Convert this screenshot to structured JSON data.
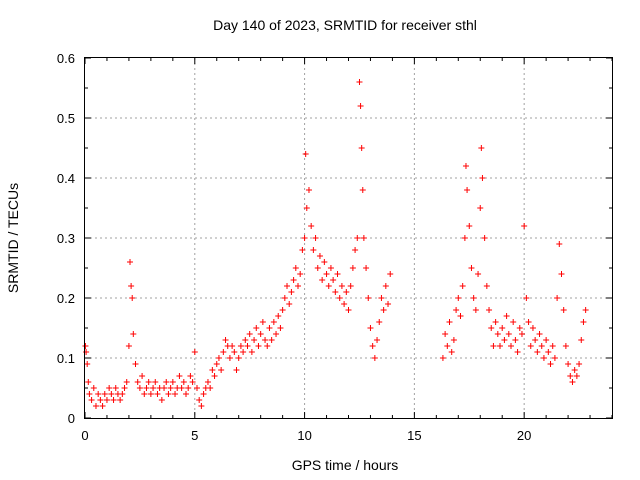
{
  "chart_data": {
    "type": "scatter",
    "title": "Day 140 of 2023, SRMTID for receiver sthl",
    "xlabel": "GPS time / hours",
    "ylabel": "SRMTID / TECUs",
    "xlim": [
      0,
      24
    ],
    "ylim": [
      0,
      0.6
    ],
    "x_ticks": [
      0,
      5,
      10,
      15,
      20
    ],
    "y_ticks": [
      0,
      0.1,
      0.2,
      0.3,
      0.4,
      0.5,
      0.6
    ],
    "x_tick_labels": [
      "0",
      "5",
      "10",
      "15",
      "20"
    ],
    "y_tick_labels": [
      "0",
      "0.1",
      "0.2",
      "0.3",
      "0.4",
      "0.5",
      "0.6"
    ],
    "grid": true,
    "marker": "+",
    "marker_color": "#ff0000",
    "series": [
      {
        "name": "SRMTID",
        "points": [
          [
            0.02,
            0.12
          ],
          [
            0.05,
            0.11
          ],
          [
            0.1,
            0.09
          ],
          [
            0.15,
            0.06
          ],
          [
            0.2,
            0.04
          ],
          [
            0.3,
            0.03
          ],
          [
            0.4,
            0.05
          ],
          [
            0.5,
            0.02
          ],
          [
            0.6,
            0.04
          ],
          [
            0.7,
            0.03
          ],
          [
            0.8,
            0.02
          ],
          [
            0.9,
            0.04
          ],
          [
            1.0,
            0.03
          ],
          [
            1.1,
            0.05
          ],
          [
            1.2,
            0.04
          ],
          [
            1.3,
            0.03
          ],
          [
            1.4,
            0.05
          ],
          [
            1.5,
            0.04
          ],
          [
            1.6,
            0.03
          ],
          [
            1.7,
            0.04
          ],
          [
            1.8,
            0.05
          ],
          [
            1.9,
            0.06
          ],
          [
            2.0,
            0.12
          ],
          [
            2.05,
            0.26
          ],
          [
            2.1,
            0.22
          ],
          [
            2.15,
            0.2
          ],
          [
            2.2,
            0.14
          ],
          [
            2.3,
            0.09
          ],
          [
            2.4,
            0.06
          ],
          [
            2.5,
            0.05
          ],
          [
            2.6,
            0.07
          ],
          [
            2.7,
            0.04
          ],
          [
            2.8,
            0.05
          ],
          [
            2.9,
            0.06
          ],
          [
            3.0,
            0.04
          ],
          [
            3.1,
            0.05
          ],
          [
            3.2,
            0.06
          ],
          [
            3.3,
            0.04
          ],
          [
            3.4,
            0.05
          ],
          [
            3.5,
            0.03
          ],
          [
            3.6,
            0.05
          ],
          [
            3.7,
            0.06
          ],
          [
            3.8,
            0.04
          ],
          [
            3.9,
            0.05
          ],
          [
            4.0,
            0.06
          ],
          [
            4.1,
            0.04
          ],
          [
            4.2,
            0.05
          ],
          [
            4.3,
            0.07
          ],
          [
            4.4,
            0.05
          ],
          [
            4.5,
            0.06
          ],
          [
            4.6,
            0.04
          ],
          [
            4.7,
            0.05
          ],
          [
            4.8,
            0.07
          ],
          [
            4.9,
            0.06
          ],
          [
            5.0,
            0.11
          ],
          [
            5.1,
            0.05
          ],
          [
            5.2,
            0.03
          ],
          [
            5.3,
            0.02
          ],
          [
            5.4,
            0.04
          ],
          [
            5.5,
            0.05
          ],
          [
            5.6,
            0.06
          ],
          [
            5.7,
            0.05
          ],
          [
            5.8,
            0.08
          ],
          [
            5.9,
            0.07
          ],
          [
            6.0,
            0.09
          ],
          [
            6.1,
            0.1
          ],
          [
            6.2,
            0.08
          ],
          [
            6.3,
            0.11
          ],
          [
            6.4,
            0.13
          ],
          [
            6.5,
            0.12
          ],
          [
            6.6,
            0.1
          ],
          [
            6.7,
            0.12
          ],
          [
            6.8,
            0.11
          ],
          [
            6.9,
            0.08
          ],
          [
            7.0,
            0.1
          ],
          [
            7.1,
            0.12
          ],
          [
            7.2,
            0.11
          ],
          [
            7.3,
            0.13
          ],
          [
            7.4,
            0.12
          ],
          [
            7.5,
            0.14
          ],
          [
            7.6,
            0.11
          ],
          [
            7.7,
            0.13
          ],
          [
            7.8,
            0.15
          ],
          [
            7.9,
            0.12
          ],
          [
            8.0,
            0.14
          ],
          [
            8.1,
            0.16
          ],
          [
            8.2,
            0.13
          ],
          [
            8.3,
            0.12
          ],
          [
            8.4,
            0.15
          ],
          [
            8.5,
            0.13
          ],
          [
            8.6,
            0.16
          ],
          [
            8.7,
            0.14
          ],
          [
            8.8,
            0.17
          ],
          [
            8.9,
            0.15
          ],
          [
            9.0,
            0.18
          ],
          [
            9.1,
            0.2
          ],
          [
            9.2,
            0.22
          ],
          [
            9.3,
            0.19
          ],
          [
            9.4,
            0.21
          ],
          [
            9.5,
            0.23
          ],
          [
            9.6,
            0.25
          ],
          [
            9.7,
            0.22
          ],
          [
            9.8,
            0.24
          ],
          [
            9.9,
            0.28
          ],
          [
            10.0,
            0.3
          ],
          [
            10.05,
            0.44
          ],
          [
            10.1,
            0.35
          ],
          [
            10.2,
            0.38
          ],
          [
            10.3,
            0.32
          ],
          [
            10.4,
            0.28
          ],
          [
            10.5,
            0.3
          ],
          [
            10.6,
            0.25
          ],
          [
            10.7,
            0.27
          ],
          [
            10.8,
            0.23
          ],
          [
            10.9,
            0.26
          ],
          [
            11.0,
            0.24
          ],
          [
            11.1,
            0.22
          ],
          [
            11.2,
            0.25
          ],
          [
            11.3,
            0.23
          ],
          [
            11.4,
            0.21
          ],
          [
            11.5,
            0.24
          ],
          [
            11.6,
            0.2
          ],
          [
            11.7,
            0.22
          ],
          [
            11.8,
            0.19
          ],
          [
            11.9,
            0.21
          ],
          [
            12.0,
            0.18
          ],
          [
            12.1,
            0.22
          ],
          [
            12.2,
            0.25
          ],
          [
            12.3,
            0.28
          ],
          [
            12.4,
            0.3
          ],
          [
            12.5,
            0.56
          ],
          [
            12.55,
            0.52
          ],
          [
            12.6,
            0.45
          ],
          [
            12.65,
            0.38
          ],
          [
            12.7,
            0.3
          ],
          [
            12.8,
            0.25
          ],
          [
            12.9,
            0.2
          ],
          [
            13.0,
            0.15
          ],
          [
            13.1,
            0.12
          ],
          [
            13.2,
            0.1
          ],
          [
            13.3,
            0.13
          ],
          [
            13.4,
            0.16
          ],
          [
            13.5,
            0.2
          ],
          [
            13.6,
            0.18
          ],
          [
            13.7,
            0.22
          ],
          [
            13.8,
            0.19
          ],
          [
            13.9,
            0.24
          ],
          [
            16.3,
            0.1
          ],
          [
            16.4,
            0.14
          ],
          [
            16.5,
            0.12
          ],
          [
            16.6,
            0.16
          ],
          [
            16.7,
            0.11
          ],
          [
            16.8,
            0.13
          ],
          [
            16.9,
            0.18
          ],
          [
            17.0,
            0.2
          ],
          [
            17.1,
            0.17
          ],
          [
            17.2,
            0.22
          ],
          [
            17.3,
            0.3
          ],
          [
            17.35,
            0.42
          ],
          [
            17.4,
            0.38
          ],
          [
            17.5,
            0.32
          ],
          [
            17.6,
            0.25
          ],
          [
            17.7,
            0.2
          ],
          [
            17.8,
            0.18
          ],
          [
            17.9,
            0.24
          ],
          [
            18.0,
            0.35
          ],
          [
            18.05,
            0.45
          ],
          [
            18.1,
            0.4
          ],
          [
            18.2,
            0.3
          ],
          [
            18.3,
            0.22
          ],
          [
            18.4,
            0.18
          ],
          [
            18.5,
            0.15
          ],
          [
            18.6,
            0.12
          ],
          [
            18.7,
            0.16
          ],
          [
            18.8,
            0.14
          ],
          [
            18.9,
            0.12
          ],
          [
            19.0,
            0.15
          ],
          [
            19.1,
            0.13
          ],
          [
            19.2,
            0.17
          ],
          [
            19.3,
            0.14
          ],
          [
            19.4,
            0.12
          ],
          [
            19.5,
            0.16
          ],
          [
            19.6,
            0.13
          ],
          [
            19.7,
            0.11
          ],
          [
            19.8,
            0.15
          ],
          [
            19.9,
            0.14
          ],
          [
            20.0,
            0.32
          ],
          [
            20.1,
            0.2
          ],
          [
            20.2,
            0.16
          ],
          [
            20.3,
            0.12
          ],
          [
            20.4,
            0.15
          ],
          [
            20.5,
            0.13
          ],
          [
            20.6,
            0.11
          ],
          [
            20.7,
            0.14
          ],
          [
            20.8,
            0.12
          ],
          [
            20.9,
            0.1
          ],
          [
            21.0,
            0.13
          ],
          [
            21.1,
            0.11
          ],
          [
            21.2,
            0.09
          ],
          [
            21.3,
            0.12
          ],
          [
            21.4,
            0.1
          ],
          [
            21.5,
            0.2
          ],
          [
            21.6,
            0.29
          ],
          [
            21.7,
            0.24
          ],
          [
            21.8,
            0.18
          ],
          [
            21.9,
            0.12
          ],
          [
            22.0,
            0.09
          ],
          [
            22.1,
            0.07
          ],
          [
            22.2,
            0.06
          ],
          [
            22.3,
            0.08
          ],
          [
            22.4,
            0.07
          ],
          [
            22.5,
            0.09
          ],
          [
            22.6,
            0.13
          ],
          [
            22.7,
            0.16
          ],
          [
            22.8,
            0.18
          ]
        ]
      }
    ]
  }
}
